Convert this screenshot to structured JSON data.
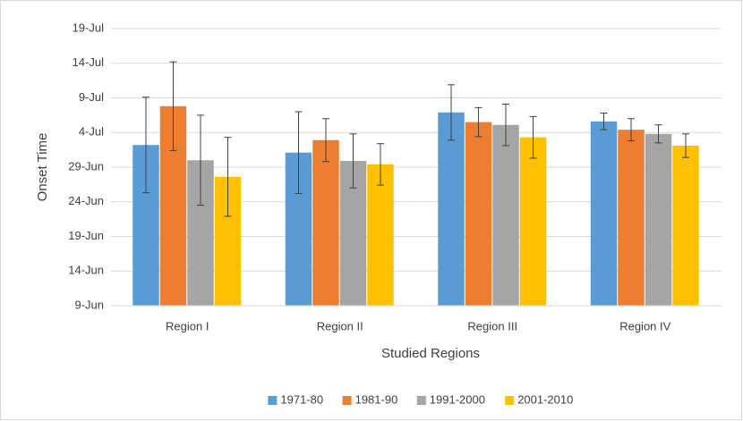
{
  "chart_data": {
    "type": "bar",
    "x_label": "Studied Regions",
    "y_label": "Onset Time",
    "categories": [
      "Region I",
      "Region II",
      "Region III",
      "Region IV"
    ],
    "series": [
      {
        "name": "1971-80",
        "color": "#5b9bd5",
        "values": [
          183.2,
          182.1,
          187.9,
          186.6
        ],
        "errors": [
          6.9,
          5.9,
          4.0,
          1.2
        ]
      },
      {
        "name": "1981-90",
        "color": "#ed7d31",
        "values": [
          188.8,
          183.9,
          186.5,
          185.4
        ],
        "errors": [
          6.4,
          3.1,
          2.1,
          1.6
        ]
      },
      {
        "name": "1991-2000",
        "color": "#a5a5a5",
        "values": [
          181.0,
          180.9,
          186.1,
          184.8
        ],
        "errors": [
          6.5,
          3.9,
          3.0,
          1.3
        ]
      },
      {
        "name": "2001-2010",
        "color": "#ffc000",
        "values": [
          178.6,
          180.4,
          184.3,
          183.1
        ],
        "errors": [
          5.7,
          3.0,
          3.0,
          1.7
        ]
      }
    ],
    "ylim": [
      160,
      200
    ],
    "yticks": [
      {
        "value": 160,
        "label": "9-Jun"
      },
      {
        "value": 165,
        "label": "14-Jun"
      },
      {
        "value": 170,
        "label": "19-Jun"
      },
      {
        "value": 175,
        "label": "24-Jun"
      },
      {
        "value": 180,
        "label": "29-Jun"
      },
      {
        "value": 185,
        "label": "4-Jul"
      },
      {
        "value": 190,
        "label": "9-Jul"
      },
      {
        "value": 195,
        "label": "14-Jul"
      },
      {
        "value": 200,
        "label": "19-Jul"
      }
    ],
    "grid": true,
    "legend": "bottom"
  }
}
